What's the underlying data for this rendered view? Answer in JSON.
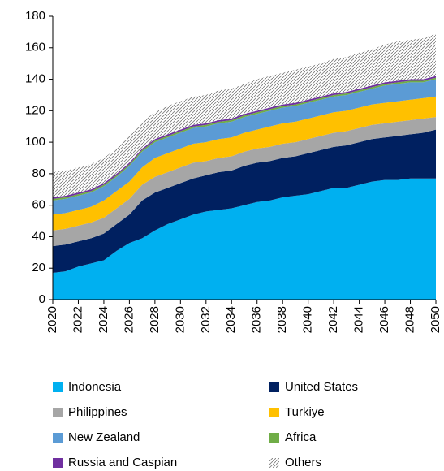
{
  "chart_data": {
    "type": "stacked_area",
    "x": [
      2020,
      2021,
      2022,
      2023,
      2024,
      2025,
      2026,
      2027,
      2028,
      2029,
      2030,
      2031,
      2032,
      2033,
      2034,
      2035,
      2036,
      2037,
      2038,
      2039,
      2040,
      2041,
      2042,
      2043,
      2044,
      2045,
      2046,
      2047,
      2048,
      2049,
      2050
    ],
    "xlim": [
      2020,
      2050
    ],
    "xticks": [
      2020,
      2022,
      2024,
      2026,
      2028,
      2030,
      2032,
      2034,
      2036,
      2038,
      2040,
      2042,
      2044,
      2046,
      2048,
      2050
    ],
    "ylim": [
      0,
      180
    ],
    "yticks": [
      0,
      20,
      40,
      60,
      80,
      100,
      120,
      140,
      160,
      180
    ],
    "legend": "bottom",
    "series": [
      {
        "name": "Indonesia",
        "color": "#00b0f0",
        "values": [
          17,
          18,
          21,
          23,
          25,
          31,
          36,
          39,
          44,
          48,
          51,
          54,
          56,
          57,
          58,
          60,
          62,
          63,
          65,
          66,
          67,
          69,
          71,
          71,
          73,
          75,
          76,
          76,
          77,
          77,
          77
        ]
      },
      {
        "name": "United States",
        "color": "#002060",
        "values": [
          17,
          17,
          16,
          16,
          17,
          17,
          18,
          24,
          24,
          23,
          23,
          23,
          23,
          24,
          24,
          25,
          25,
          25,
          25,
          25,
          26,
          26,
          26,
          27,
          27,
          27,
          27,
          28,
          28,
          29,
          31
        ]
      },
      {
        "name": "Philippines",
        "color": "#a6a6a6",
        "values": [
          10,
          10,
          10,
          10,
          10,
          10,
          10,
          10,
          10,
          10,
          10,
          10,
          9,
          9,
          9,
          9,
          9,
          9,
          9,
          9,
          9,
          9,
          9,
          9,
          9,
          9,
          9,
          9,
          9,
          9,
          8
        ]
      },
      {
        "name": "Turkiye",
        "color": "#ffc000",
        "values": [
          10,
          10,
          10,
          10,
          11,
          11,
          11,
          11,
          12,
          12,
          12,
          12,
          12,
          12,
          12,
          12,
          12,
          13,
          13,
          13,
          13,
          13,
          13,
          13,
          13,
          13,
          13,
          13,
          13,
          13,
          13
        ]
      },
      {
        "name": "New Zealand",
        "color": "#5b9bd5",
        "values": [
          9,
          9,
          9,
          9,
          9,
          9,
          10,
          10,
          10,
          10,
          10,
          10,
          10,
          10,
          10,
          10,
          10,
          10,
          10,
          10,
          10,
          10,
          10,
          10,
          10,
          10,
          11,
          11,
          11,
          10,
          11
        ]
      },
      {
        "name": "Africa",
        "color": "#70ad47",
        "values": [
          1,
          1,
          1,
          1,
          1,
          1,
          1,
          1,
          1,
          1,
          1,
          1,
          1,
          1,
          1,
          1,
          1,
          1,
          1,
          1,
          1,
          1,
          1,
          1,
          1,
          1,
          1,
          1,
          1,
          1,
          1
        ]
      },
      {
        "name": "Russia and Caspian",
        "color": "#7030a0",
        "values": [
          1,
          1,
          1,
          1,
          1,
          1,
          1,
          1,
          1,
          1,
          1,
          1,
          1,
          1,
          1,
          1,
          1,
          1,
          1,
          1,
          1,
          1,
          1,
          1,
          1,
          1,
          1,
          1,
          1,
          1,
          1
        ]
      },
      {
        "name": "Others",
        "color": "#808080",
        "pattern": "hatch",
        "values": [
          16,
          16,
          16,
          16,
          16,
          16,
          17,
          17,
          17,
          18,
          18,
          18,
          18,
          19,
          19,
          19,
          20,
          20,
          20,
          21,
          21,
          21,
          22,
          22,
          23,
          23,
          24,
          25,
          25,
          26,
          27
        ]
      }
    ]
  }
}
